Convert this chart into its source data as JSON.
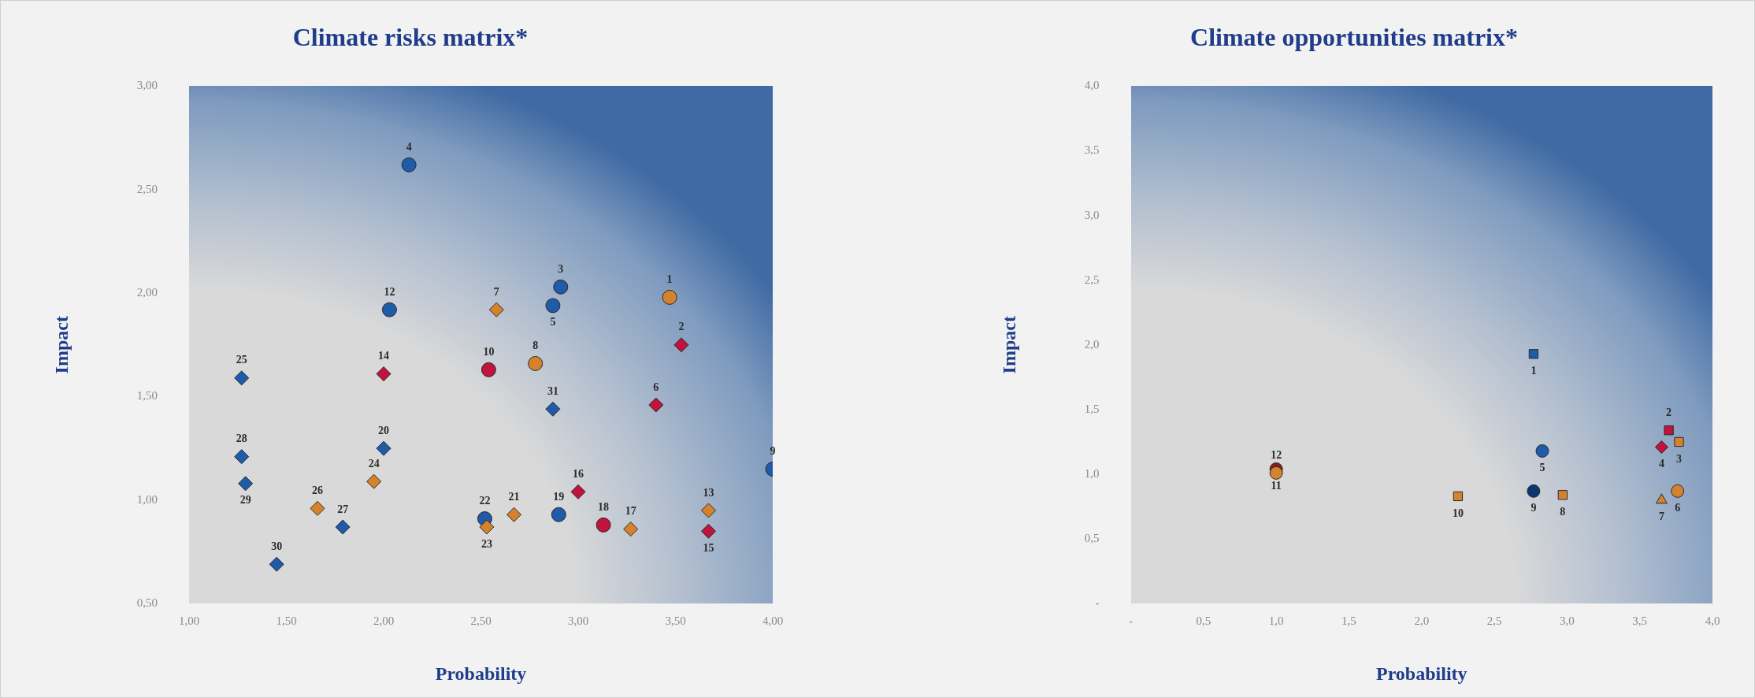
{
  "chart_data": [
    {
      "type": "scatter",
      "title": "Climate risks matrix*",
      "xlabel": "Probability",
      "ylabel": "Impact",
      "legend": false,
      "grid": false,
      "xlim": [
        1,
        4
      ],
      "xticks": [
        {
          "value": 1,
          "label": "1,00"
        },
        {
          "value": 1.5,
          "label": "1,50"
        },
        {
          "value": 2,
          "label": "2,00"
        },
        {
          "value": 2.5,
          "label": "2,50"
        },
        {
          "value": 3,
          "label": "3,00"
        },
        {
          "value": 3.5,
          "label": "3,50"
        },
        {
          "value": 4,
          "label": "4,00"
        }
      ],
      "ylim": [
        0.5,
        3
      ],
      "yticks": [
        {
          "value": 0.5,
          "label": "0,50"
        },
        {
          "value": 1,
          "label": "1,00"
        },
        {
          "value": 1.5,
          "label": "1,50"
        },
        {
          "value": 2,
          "label": "2,00"
        },
        {
          "value": 2.5,
          "label": "2,50"
        },
        {
          "value": 3,
          "label": "3,00"
        }
      ],
      "series": [
        {
          "color": "#1f5ba8",
          "marker": "circle",
          "x": [
            2.13,
            2.03,
            2.91,
            2.87,
            4.0,
            2.9,
            2.52
          ],
          "values": [
            2.62,
            1.92,
            2.03,
            1.94,
            1.15,
            0.93,
            0.91
          ]
        },
        {
          "color": "#1f5ba8",
          "marker": "diamond",
          "x": [
            1.27,
            1.27,
            1.29,
            2.0,
            1.79,
            1.45,
            2.87
          ],
          "values": [
            1.59,
            1.21,
            1.08,
            1.25,
            0.87,
            0.69,
            1.44
          ]
        },
        {
          "color": "#d4822e",
          "marker": "circle",
          "x": [
            3.47,
            2.78
          ],
          "values": [
            1.98,
            1.66
          ]
        },
        {
          "color": "#d4822e",
          "marker": "diamond",
          "x": [
            2.58,
            1.66,
            1.95,
            2.53,
            2.67,
            3.27,
            3.67
          ],
          "values": [
            1.92,
            0.96,
            1.09,
            0.87,
            0.93,
            0.86,
            0.95
          ]
        },
        {
          "color": "#c0143c",
          "marker": "circle",
          "x": [
            2.54,
            3.13
          ],
          "values": [
            1.63,
            0.88
          ]
        },
        {
          "color": "#c0143c",
          "marker": "diamond",
          "x": [
            3.53,
            3.4,
            2.0,
            3.0,
            3.67
          ],
          "values": [
            1.75,
            1.46,
            1.61,
            1.04,
            0.85
          ]
        }
      ],
      "annotations": [
        {
          "text": "4",
          "x": 2.13,
          "y": 2.62
        },
        {
          "text": "12",
          "x": 2.03,
          "y": 1.92
        },
        {
          "text": "3",
          "x": 2.91,
          "y": 2.03
        },
        {
          "text": "5",
          "x": 2.87,
          "y": 1.94
        },
        {
          "text": "9",
          "x": 4.0,
          "y": 1.15
        },
        {
          "text": "19",
          "x": 2.9,
          "y": 0.93
        },
        {
          "text": "22",
          "x": 2.52,
          "y": 0.91
        },
        {
          "text": "25",
          "x": 1.27,
          "y": 1.59
        },
        {
          "text": "28",
          "x": 1.27,
          "y": 1.21
        },
        {
          "text": "29",
          "x": 1.29,
          "y": 1.08
        },
        {
          "text": "20",
          "x": 2.0,
          "y": 1.25
        },
        {
          "text": "27",
          "x": 1.79,
          "y": 0.87
        },
        {
          "text": "30",
          "x": 1.45,
          "y": 0.69
        },
        {
          "text": "31",
          "x": 2.87,
          "y": 1.44
        },
        {
          "text": "1",
          "x": 3.47,
          "y": 1.98
        },
        {
          "text": "8",
          "x": 2.78,
          "y": 1.66
        },
        {
          "text": "7",
          "x": 2.58,
          "y": 1.92
        },
        {
          "text": "26",
          "x": 1.66,
          "y": 0.96
        },
        {
          "text": "24",
          "x": 1.95,
          "y": 1.09
        },
        {
          "text": "23",
          "x": 2.53,
          "y": 0.87
        },
        {
          "text": "21",
          "x": 2.67,
          "y": 0.93
        },
        {
          "text": "17",
          "x": 3.27,
          "y": 0.86
        },
        {
          "text": "13",
          "x": 3.67,
          "y": 0.95
        },
        {
          "text": "10",
          "x": 2.54,
          "y": 1.63
        },
        {
          "text": "18",
          "x": 3.13,
          "y": 0.88
        },
        {
          "text": "2",
          "x": 3.53,
          "y": 1.75
        },
        {
          "text": "6",
          "x": 3.4,
          "y": 1.46
        },
        {
          "text": "14",
          "x": 2.0,
          "y": 1.61
        },
        {
          "text": "16",
          "x": 3.0,
          "y": 1.04
        },
        {
          "text": "15",
          "x": 3.67,
          "y": 0.85
        }
      ]
    },
    {
      "type": "scatter",
      "title": "Climate opportunities matrix*",
      "xlabel": "Probability",
      "ylabel": "Impact",
      "legend": false,
      "grid": false,
      "xlim": [
        0,
        4
      ],
      "xticks": [
        {
          "value": 0,
          "label": "-"
        },
        {
          "value": 0.5,
          "label": "0,5"
        },
        {
          "value": 1,
          "label": "1,0"
        },
        {
          "value": 1.5,
          "label": "1,5"
        },
        {
          "value": 2,
          "label": "2,0"
        },
        {
          "value": 2.5,
          "label": "2,5"
        },
        {
          "value": 3,
          "label": "3,0"
        },
        {
          "value": 3.5,
          "label": "3,5"
        },
        {
          "value": 4,
          "label": "4,0"
        }
      ],
      "ylim": [
        0,
        4
      ],
      "yticks": [
        {
          "value": 0,
          "label": "-"
        },
        {
          "value": 0.5,
          "label": "0,5"
        },
        {
          "value": 1,
          "label": "1,0"
        },
        {
          "value": 1.5,
          "label": "1,5"
        },
        {
          "value": 2,
          "label": "2,0"
        },
        {
          "value": 2.5,
          "label": "2,5"
        },
        {
          "value": 3,
          "label": "3,0"
        },
        {
          "value": 3.5,
          "label": "3,5"
        },
        {
          "value": 4,
          "label": "4,0"
        }
      ],
      "series": [
        {
          "color": "#1f5ba8",
          "marker": "square",
          "x": [
            2.77
          ],
          "values": [
            1.93
          ]
        },
        {
          "color": "#c0143c",
          "marker": "square",
          "x": [
            3.7
          ],
          "values": [
            1.34
          ]
        },
        {
          "color": "#d4822e",
          "marker": "square",
          "x": [
            3.77,
            2.97,
            2.25
          ],
          "values": [
            1.25,
            0.84,
            0.83
          ]
        },
        {
          "color": "#c0143c",
          "marker": "diamond",
          "x": [
            3.65
          ],
          "values": [
            1.21
          ]
        },
        {
          "color": "#1f5ba8",
          "marker": "circle",
          "x": [
            2.83
          ],
          "values": [
            1.18
          ]
        },
        {
          "color": "#0d3570",
          "marker": "circle",
          "x": [
            2.77
          ],
          "values": [
            0.87
          ]
        },
        {
          "color": "#8b1a1a",
          "marker": "circle",
          "x": [
            1.0
          ],
          "values": [
            1.04
          ]
        },
        {
          "color": "#d4822e",
          "marker": "circle",
          "x": [
            3.76,
            1.0
          ],
          "values": [
            0.87,
            1.01
          ]
        },
        {
          "color": "#d4822e",
          "marker": "triangle",
          "x": [
            3.65
          ],
          "values": [
            0.8
          ]
        }
      ],
      "annotations": [
        {
          "text": "1",
          "x": 2.77,
          "y": 1.93
        },
        {
          "text": "2",
          "x": 3.7,
          "y": 1.34
        },
        {
          "text": "3",
          "x": 3.77,
          "y": 1.25
        },
        {
          "text": "8",
          "x": 2.97,
          "y": 0.84
        },
        {
          "text": "10",
          "x": 2.25,
          "y": 0.83
        },
        {
          "text": "4",
          "x": 3.65,
          "y": 1.21
        },
        {
          "text": "5",
          "x": 2.83,
          "y": 1.18
        },
        {
          "text": "9",
          "x": 2.77,
          "y": 0.87
        },
        {
          "text": "11",
          "x": 1.0,
          "y": 1.04
        },
        {
          "text": "6",
          "x": 3.76,
          "y": 0.87
        },
        {
          "text": "12",
          "x": 1.0,
          "y": 1.01
        },
        {
          "text": "7",
          "x": 3.65,
          "y": 0.8
        }
      ]
    }
  ]
}
